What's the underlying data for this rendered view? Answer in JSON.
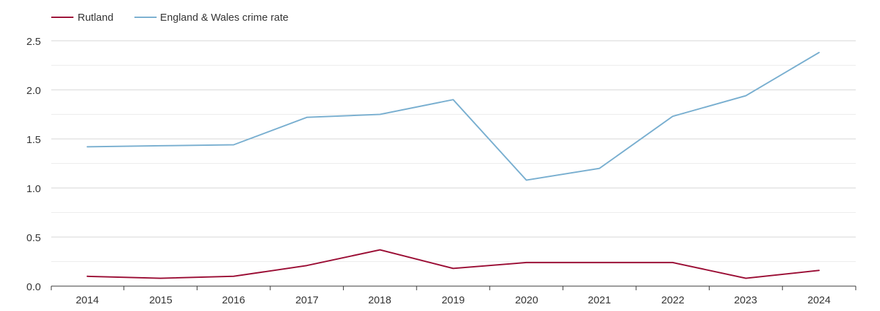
{
  "chart_data": {
    "type": "line",
    "title": "",
    "xlabel": "",
    "ylabel": "",
    "x": [
      "2014",
      "2015",
      "2016",
      "2017",
      "2018",
      "2019",
      "2020",
      "2021",
      "2022",
      "2023",
      "2024"
    ],
    "ylim": [
      0,
      2.5
    ],
    "yticks": [
      "0.0",
      "0.5",
      "1.0",
      "1.5",
      "2.0",
      "2.5"
    ],
    "grid": true,
    "legend_position": "top-left",
    "series": [
      {
        "name": "Rutland",
        "color": "#9b0e35",
        "values": [
          0.1,
          0.08,
          0.1,
          0.21,
          0.37,
          0.18,
          0.24,
          0.24,
          0.24,
          0.08,
          0.16
        ]
      },
      {
        "name": "England & Wales crime rate",
        "color": "#79afd0",
        "values": [
          1.42,
          1.43,
          1.44,
          1.72,
          1.75,
          1.9,
          1.08,
          1.2,
          1.73,
          1.94,
          2.38
        ]
      }
    ]
  }
}
